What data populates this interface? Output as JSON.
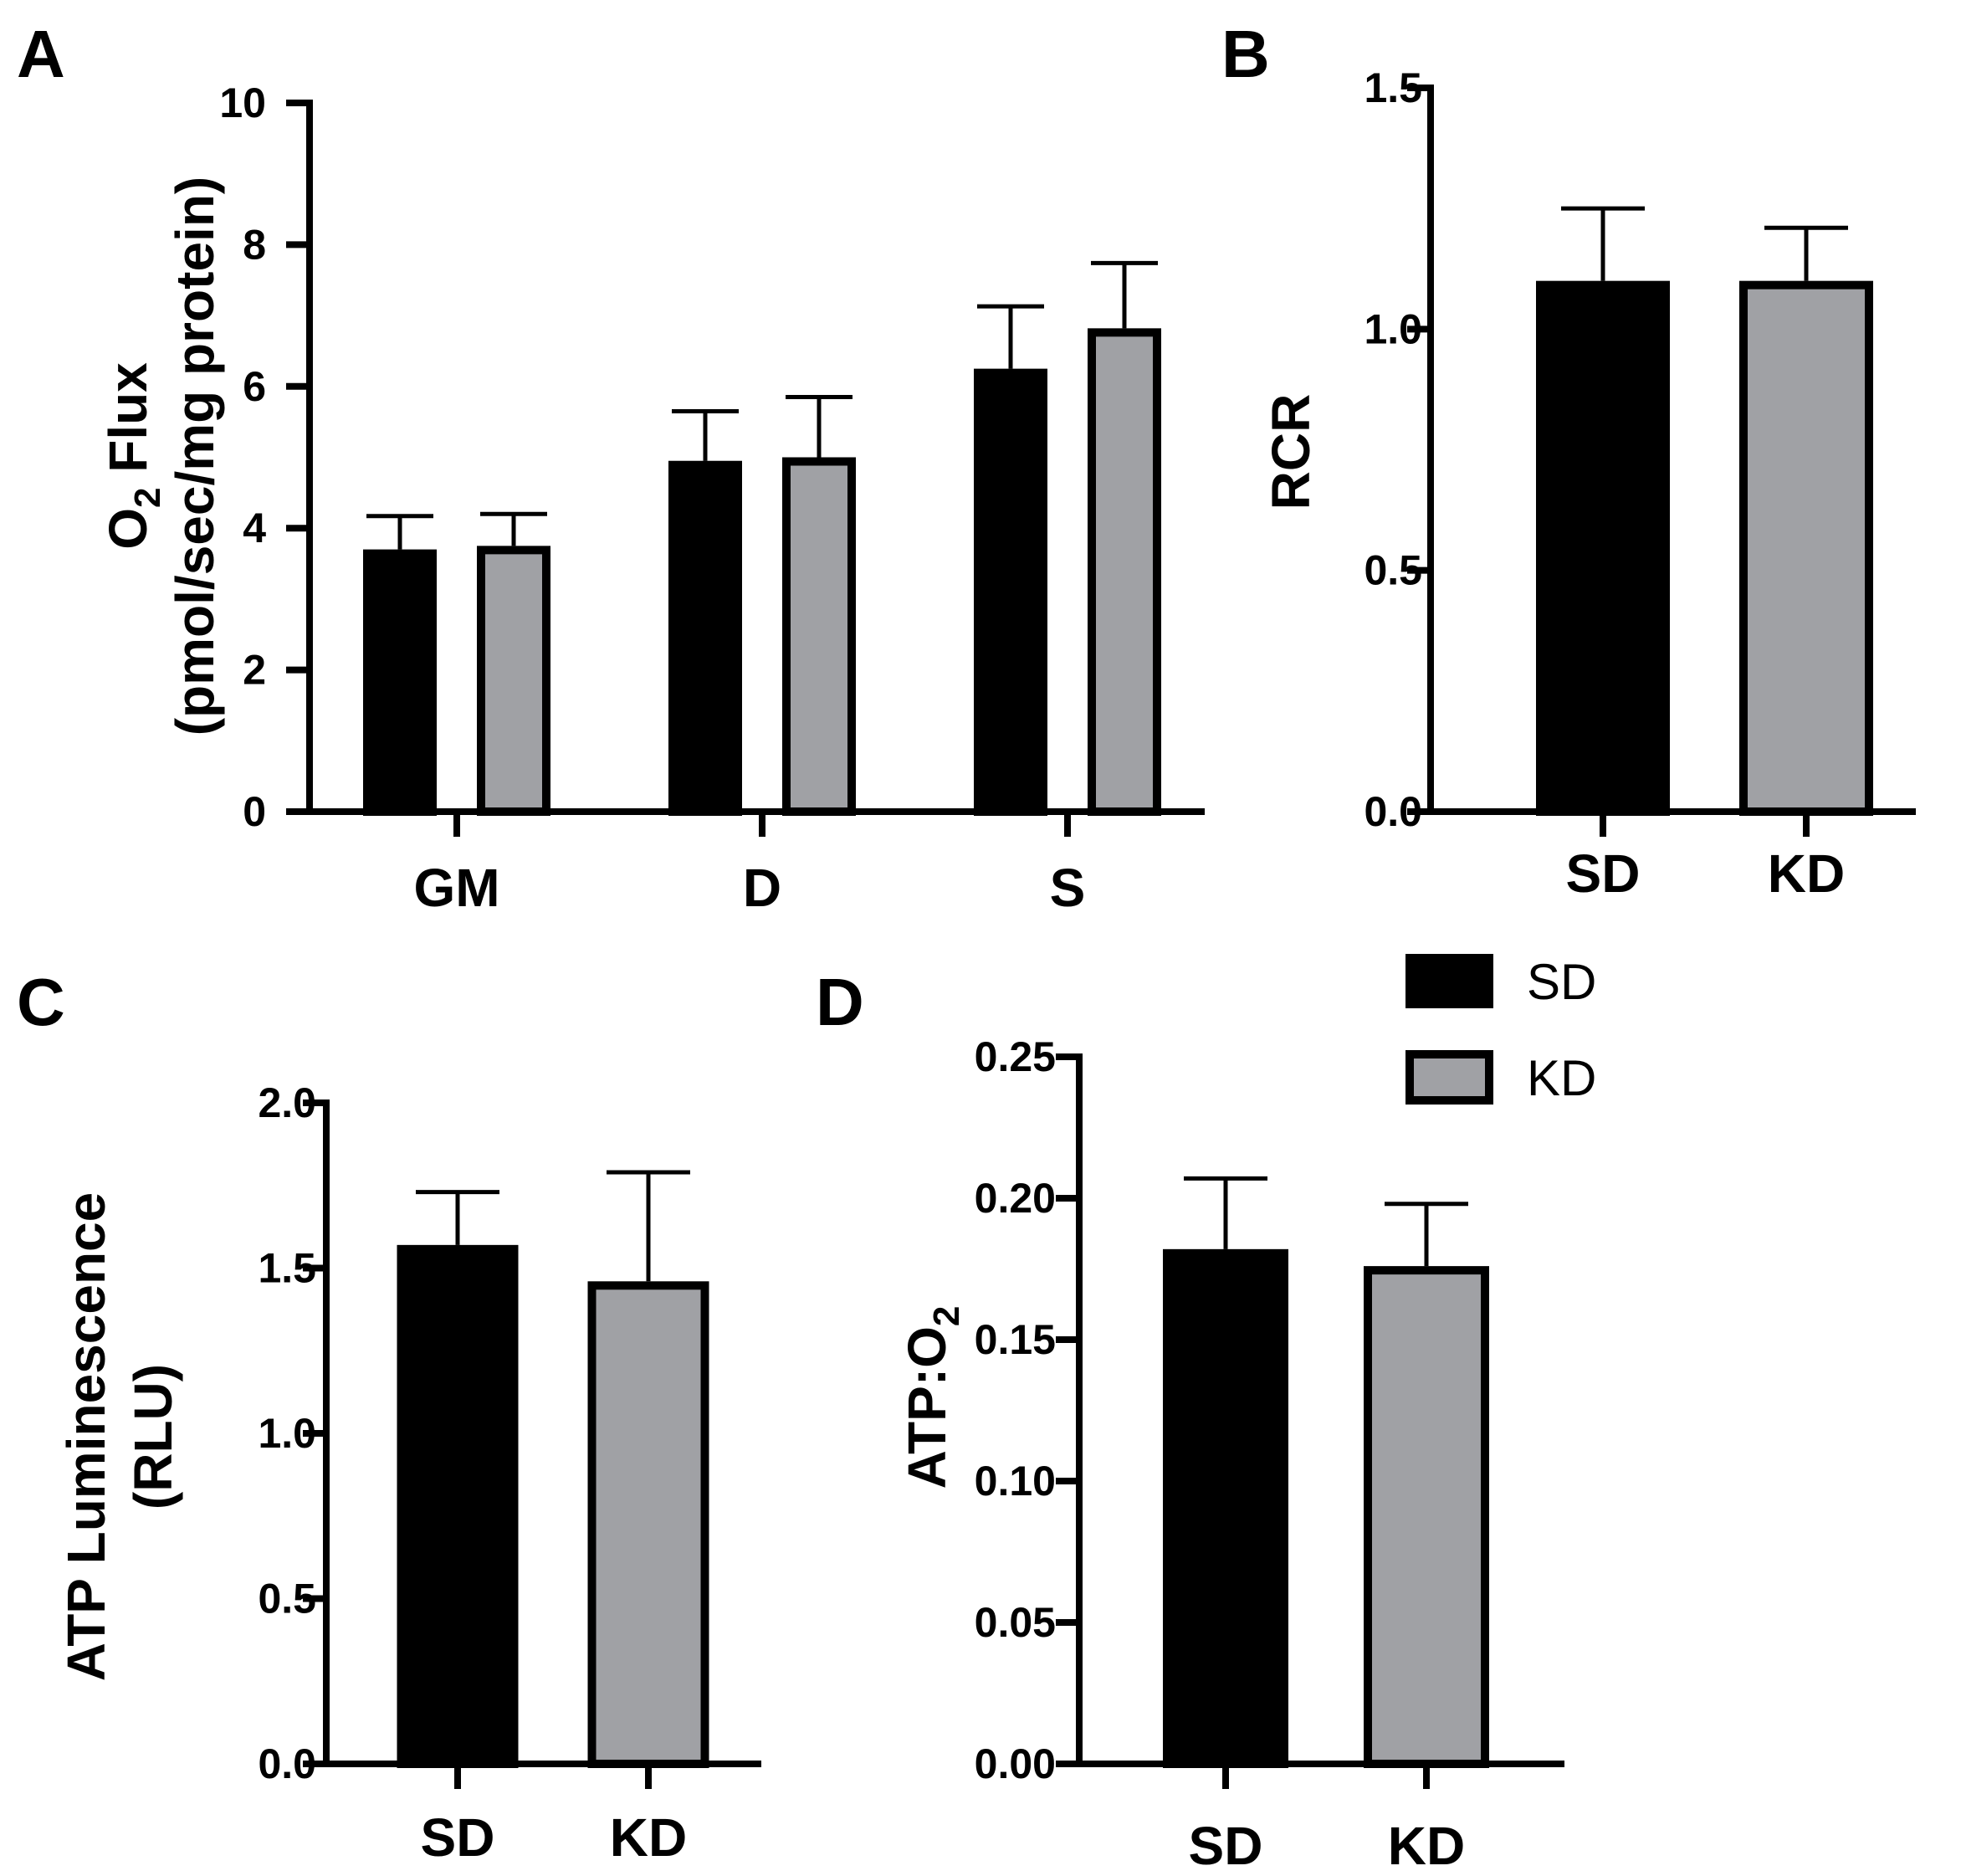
{
  "colors": {
    "SD": "#000000",
    "KD": "#a0a1a5",
    "outline": "#000000"
  },
  "legend": [
    {
      "label": "SD",
      "color": "#000000"
    },
    {
      "label": "KD",
      "color": "#a0a1a5"
    }
  ],
  "chart_data": [
    {
      "panel": "A",
      "type": "bar",
      "categories": [
        "GM",
        "D",
        "S"
      ],
      "series": [
        {
          "name": "SD",
          "values": [
            3.7,
            4.95,
            6.25
          ],
          "errors": [
            0.47,
            0.7,
            0.88
          ]
        },
        {
          "name": "KD",
          "values": [
            3.75,
            5.0,
            6.82
          ],
          "errors": [
            0.45,
            0.85,
            0.92
          ]
        }
      ],
      "ylim": [
        0,
        10
      ],
      "yticks": [
        "0",
        "2",
        "4",
        "6",
        "8",
        "10"
      ],
      "ytick_values": [
        0,
        2,
        4,
        6,
        8,
        10
      ],
      "ylabel": {
        "line1_pre": "O",
        "line1_sub": "2",
        "line1_post": " Flux",
        "line2": "(pmol/sec/mg protein)"
      },
      "xlabel": ""
    },
    {
      "panel": "B",
      "type": "bar",
      "categories": [
        "SD",
        "KD"
      ],
      "series": [
        {
          "name": "value",
          "values": [
            1.1,
            1.1
          ],
          "errors": [
            0.15,
            0.11
          ]
        }
      ],
      "ylim": [
        0,
        1.5
      ],
      "yticks": [
        "0.0",
        "0.5",
        "1.0",
        "1.5"
      ],
      "ytick_values": [
        0,
        0.5,
        1.0,
        1.5
      ],
      "ylabel": {
        "text": "RCR"
      },
      "xlabel": ""
    },
    {
      "panel": "C",
      "type": "bar",
      "categories": [
        "SD",
        "KD"
      ],
      "series": [
        {
          "name": "value",
          "values": [
            1.57,
            1.46
          ],
          "errors": [
            0.16,
            0.33
          ]
        }
      ],
      "ylim": [
        0,
        2.0
      ],
      "yticks": [
        "0.0",
        "0.5",
        "1.0",
        "1.5",
        "2.0"
      ],
      "ytick_values": [
        0,
        0.5,
        1.0,
        1.5,
        2.0
      ],
      "ylabel": {
        "line1": "ATP Luminescence",
        "line2": "(RLU)"
      },
      "xlabel": ""
    },
    {
      "panel": "D",
      "type": "bar",
      "categories": [
        "SD",
        "KD"
      ],
      "series": [
        {
          "name": "value",
          "values": [
            0.182,
            0.176
          ],
          "errors": [
            0.025,
            0.022
          ]
        }
      ],
      "ylim": [
        0,
        0.25
      ],
      "yticks": [
        "0.00",
        "0.05",
        "0.10",
        "0.15",
        "0.20",
        "0.25"
      ],
      "ytick_values": [
        0,
        0.05,
        0.1,
        0.15,
        0.2,
        0.25
      ],
      "ylabel": {
        "pre": "ATP:O",
        "sub": "2"
      },
      "xlabel": ""
    }
  ]
}
